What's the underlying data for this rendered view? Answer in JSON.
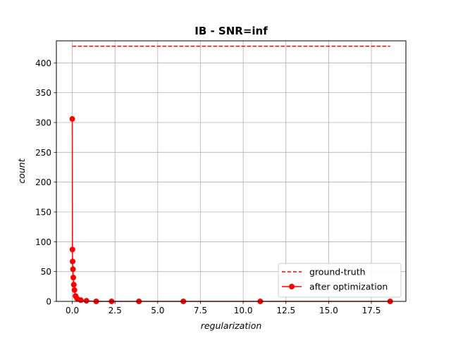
{
  "chart_data": {
    "type": "line",
    "title": "IB - SNR=inf",
    "xlabel": "regularization",
    "ylabel": "count",
    "xlim": [
      -0.93,
      19.52
    ],
    "ylim": [
      0,
      437
    ],
    "xticks": [
      0.0,
      2.5,
      5.0,
      7.5,
      10.0,
      12.5,
      15.0,
      17.5
    ],
    "xtick_labels": [
      "0.0",
      "2.5",
      "5.0",
      "7.5",
      "10.0",
      "12.5",
      "15.0",
      "17.5"
    ],
    "yticks": [
      0,
      50,
      100,
      150,
      200,
      250,
      300,
      350,
      400
    ],
    "ytick_labels": [
      "0",
      "50",
      "100",
      "150",
      "200",
      "250",
      "300",
      "350",
      "400"
    ],
    "grid": true,
    "legend_position": "lower-right",
    "series": [
      {
        "name": "ground-truth",
        "color": "#ff0000",
        "style": "dashed",
        "x": [
          0.0,
          18.6
        ],
        "y": [
          428,
          428
        ]
      },
      {
        "name": "after optimization",
        "color": "#ff0000",
        "style": "solid-marker",
        "x": [
          0.0,
          0.01,
          0.02,
          0.04,
          0.06,
          0.09,
          0.13,
          0.19,
          0.28,
          0.5,
          0.83,
          1.4,
          2.3,
          3.9,
          6.5,
          11.0,
          18.6
        ],
        "y": [
          306,
          87,
          67,
          54,
          40,
          28,
          19,
          9,
          5,
          2,
          1,
          0,
          0,
          0,
          0,
          0,
          0
        ]
      }
    ]
  }
}
